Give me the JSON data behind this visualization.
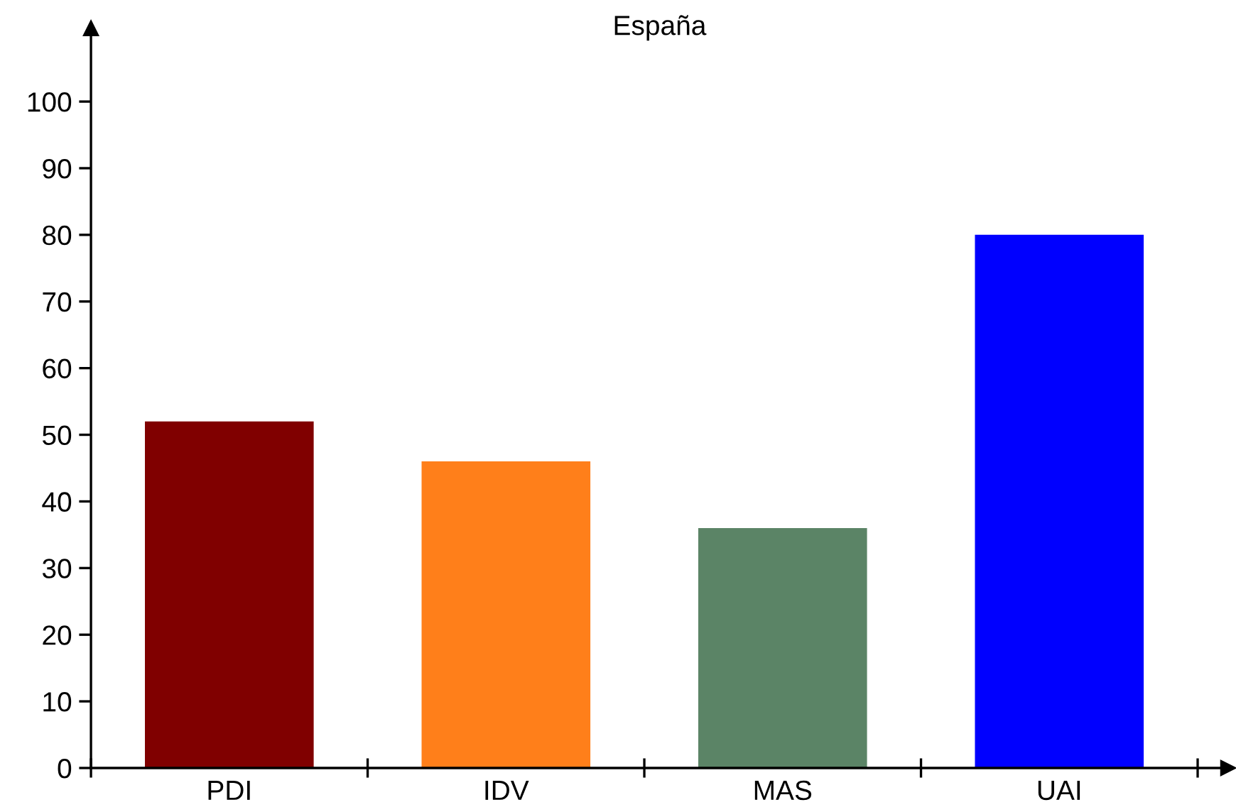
{
  "chart_data": {
    "type": "bar",
    "title": "España",
    "categories": [
      "PDI",
      "IDV",
      "MAS",
      "UAI"
    ],
    "values": [
      52,
      46,
      36,
      80
    ],
    "colors": [
      "#800000",
      "#ff7f1a",
      "#5b8466",
      "#0000ff"
    ],
    "ylim": [
      0,
      111
    ],
    "yticks": [
      0,
      10,
      20,
      30,
      40,
      50,
      60,
      70,
      80,
      90,
      100
    ],
    "grid": false
  }
}
